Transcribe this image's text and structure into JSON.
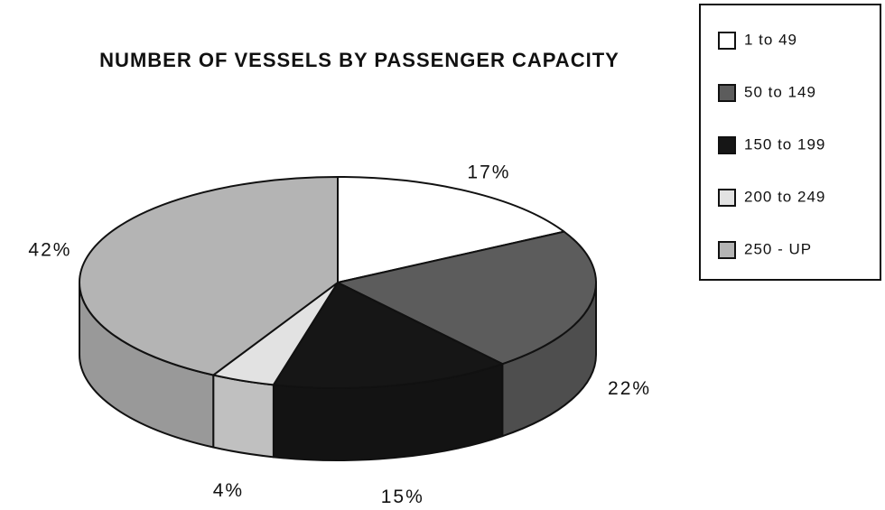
{
  "chart_data": {
    "type": "pie",
    "title": "NUMBER OF VESSELS BY PASSENGER CAPACITY",
    "categories": [
      "1 to 49",
      "50 to 149",
      "150 to 199",
      "200 to 249",
      "250 - UP"
    ],
    "values": [
      17,
      22,
      15,
      4,
      42
    ],
    "value_labels": [
      "17%",
      "22%",
      "15%",
      "4%",
      "42%"
    ],
    "colors": [
      "#ffffff",
      "#5c5c5c",
      "#161616",
      "#e2e2e2",
      "#b4b4b4"
    ],
    "legend": "upper right"
  }
}
